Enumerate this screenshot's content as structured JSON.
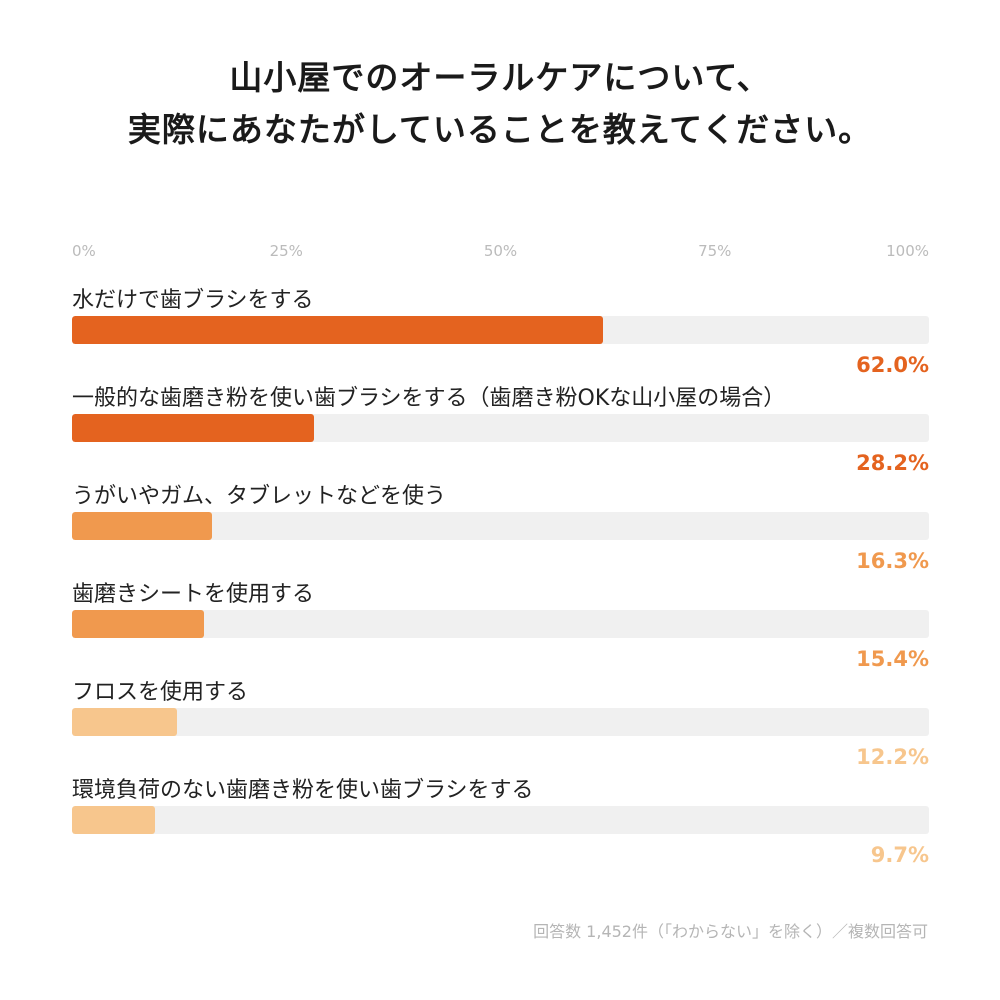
{
  "chart_data": {
    "type": "bar",
    "orientation": "horizontal",
    "title_lines": [
      "山小屋でのオーラルケアについて、",
      "実際にあなたがしていることを教えてください。"
    ],
    "title": "山小屋でのオーラルケアについて、実際にあなたがしていることを教えてください。",
    "xlim": [
      0,
      100
    ],
    "tick_values": [
      0,
      25,
      50,
      75,
      100
    ],
    "tick_labels": [
      "0%",
      "25%",
      "50%",
      "75%",
      "100%"
    ],
    "categories": [
      "水だけで歯ブラシをする",
      "一般的な歯磨き粉を使い歯ブラシをする（歯磨き粉OKな山小屋の場合）",
      "うがいやガム、タブレットなどを使う",
      "歯磨きシートを使用する",
      "フロスを使用する",
      "環境負荷のない歯磨き粉を使い歯ブラシをする"
    ],
    "values": [
      62.0,
      28.2,
      16.3,
      15.4,
      12.2,
      9.7
    ],
    "value_labels": [
      "62.0%",
      "28.2%",
      "16.3%",
      "15.4%",
      "12.2%",
      "9.7%"
    ],
    "colors": [
      "#e4631f",
      "#e4631f",
      "#f0994e",
      "#f0994e",
      "#f7c68d",
      "#f7c68d"
    ],
    "track_color": "#f0f0f0",
    "grid": false,
    "legend": "none",
    "note": "回答数 1,452件（「わからない」を除く）／複数回答可"
  }
}
